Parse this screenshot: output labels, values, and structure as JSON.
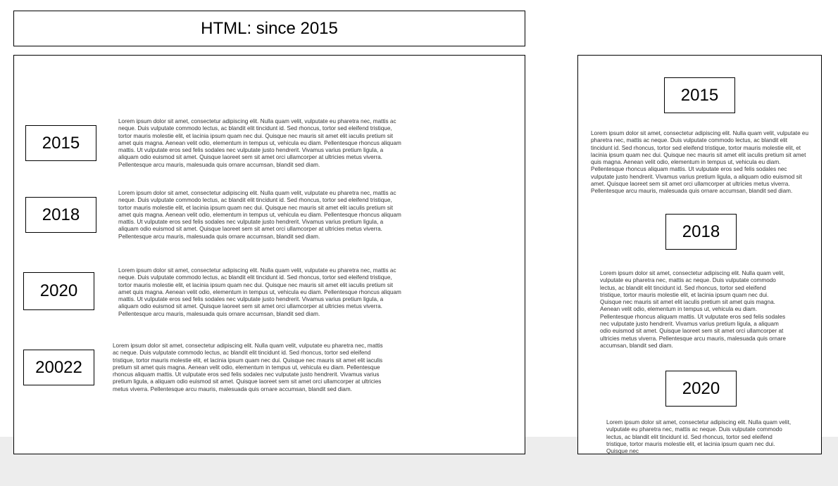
{
  "header": {
    "title": "HTML: since 2015"
  },
  "lorem": "Lorem ipsum dolor sit amet, consectetur adipiscing elit. Nulla quam velit, vulputate eu pharetra nec, mattis ac neque. Duis vulputate commodo lectus, ac blandit elit tincidunt id. Sed rhoncus, tortor sed eleifend tristique, tortor mauris molestie elit, et lacinia ipsum quam nec dui. Quisque nec mauris sit amet elit iaculis pretium sit amet quis magna. Aenean velit odio, elementum in tempus ut, vehicula eu diam. Pellentesque rhoncus aliquam mattis. Ut vulputate eros sed felis sodales nec vulputate justo hendrerit. Vivamus varius pretium ligula, a aliquam odio euismod sit amet. Quisque laoreet sem sit amet orci ullamcorper at ultricies metus viverra. Pellentesque arcu mauris, malesuada quis ornare accumsan, blandit sed diam.",
  "main": {
    "entries": [
      {
        "year": "2015",
        "text": "Lorem ipsum dolor sit amet, consectetur adipiscing elit. Nulla quam velit, vulputate eu pharetra nec, mattis ac neque. Duis vulputate commodo lectus, ac blandit elit tincidunt id. Sed rhoncus, tortor sed eleifend tristique, tortor mauris molestie elit, et lacinia ipsum quam nec dui. Quisque nec mauris sit amet elit iaculis pretium sit amet quis magna. Aenean velit odio, elementum in tempus ut, vehicula eu diam. Pellentesque rhoncus aliquam mattis. Ut vulputate eros sed felis sodales nec vulputate justo hendrerit. Vivamus varius pretium ligula, a aliquam odio euismod sit amet. Quisque laoreet sem sit amet orci ullamcorper at ultricies metus viverra. Pellentesque arcu mauris, malesuada quis ornare accumsan, blandit sed diam."
      },
      {
        "year": "2018",
        "text": "Lorem ipsum dolor sit amet, consectetur adipiscing elit. Nulla quam velit, vulputate eu pharetra nec, mattis ac neque. Duis vulputate commodo lectus, ac blandit elit tincidunt id. Sed rhoncus, tortor sed eleifend tristique, tortor mauris molestie elit, et lacinia ipsum quam nec dui. Quisque nec mauris sit amet elit iaculis pretium sit amet quis magna. Aenean velit odio, elementum in tempus ut, vehicula eu diam. Pellentesque rhoncus aliquam mattis. Ut vulputate eros sed felis sodales nec vulputate justo hendrerit. Vivamus varius pretium ligula, a aliquam odio euismod sit amet. Quisque laoreet sem sit amet orci ullamcorper at ultricies metus viverra. Pellentesque arcu mauris, malesuada quis ornare accumsan, blandit sed diam."
      },
      {
        "year": "2020",
        "text": "Lorem ipsum dolor sit amet, consectetur adipiscing elit. Nulla quam velit, vulputate eu pharetra nec, mattis ac neque. Duis vulputate commodo lectus, ac blandit elit tincidunt id. Sed rhoncus, tortor sed eleifend tristique, tortor mauris molestie elit, et lacinia ipsum quam nec dui. Quisque nec mauris sit amet elit iaculis pretium sit amet quis magna. Aenean velit odio, elementum in tempus ut, vehicula eu diam. Pellentesque rhoncus aliquam mattis. Ut vulputate eros sed felis sodales nec vulputate justo hendrerit. Vivamus varius pretium ligula, a aliquam odio euismod sit amet. Quisque laoreet sem sit amet orci ullamcorper at ultricies metus viverra. Pellentesque arcu mauris, malesuada quis ornare accumsan, blandit sed diam."
      },
      {
        "year": "20022",
        "text": "Lorem ipsum dolor sit amet, consectetur adipiscing elit. Nulla quam velit, vulputate eu pharetra nec, mattis ac neque. Duis vulputate commodo lectus, ac blandit elit tincidunt id. Sed rhoncus, tortor sed eleifend tristique, tortor mauris molestie elit, et lacinia ipsum quam nec dui. Quisque nec mauris sit amet elit iaculis pretium sit amet quis magna. Aenean velit odio, elementum in tempus ut, vehicula eu diam. Pellentesque rhoncus aliquam mattis. Ut vulputate eros sed felis sodales nec vulputate justo hendrerit. Vivamus varius pretium ligula, a aliquam odio euismod sit amet. Quisque laoreet sem sit amet orci ullamcorper at ultricies metus viverra. Pellentesque arcu mauris, malesuada quis ornare accumsan, blandit sed diam."
      }
    ]
  },
  "side": {
    "entries": [
      {
        "year": "2015",
        "text": "Lorem ipsum dolor sit amet, consectetur adipiscing elit. Nulla quam velit, vulputate eu pharetra nec, mattis ac neque. Duis vulputate commodo lectus, ac blandit elit tincidunt id. Sed rhoncus, tortor sed eleifend tristique, tortor mauris molestie elit, et lacinia ipsum quam nec dui. Quisque nec mauris sit amet elit iaculis pretium sit amet quis magna. Aenean velit odio, elementum in tempus ut, vehicula eu diam. Pellentesque rhoncus aliquam mattis. Ut vulputate eros sed felis sodales nec vulputate justo hendrerit. Vivamus varius pretium ligula, a aliquam odio euismod sit amet. Quisque laoreet sem sit amet orci ullamcorper at ultricies metus viverra. Pellentesque arcu mauris, malesuada quis ornare accumsan, blandit sed diam."
      },
      {
        "year": "2018",
        "text": "Lorem ipsum dolor sit amet, consectetur adipiscing elit. Nulla quam velit, vulputate eu pharetra nec, mattis ac neque. Duis vulputate commodo lectus, ac blandit elit tincidunt id. Sed rhoncus, tortor sed eleifend tristique, tortor mauris molestie elit, et lacinia ipsum quam nec dui. Quisque nec mauris sit amet elit iaculis pretium sit amet quis magna. Aenean velit odio, elementum in tempus ut, vehicula eu diam. Pellentesque rhoncus aliquam mattis. Ut vulputate eros sed felis sodales nec vulputate justo hendrerit. Vivamus varius pretium ligula, a aliquam odio euismod sit amet. Quisque laoreet sem sit amet orci ullamcorper at ultricies metus viverra. Pellentesque arcu mauris, malesuada quis ornare accumsan, blandit sed diam."
      },
      {
        "year": "2020",
        "text": "Lorem ipsum dolor sit amet, consectetur adipiscing elit. Nulla quam velit, vulputate eu pharetra nec, mattis ac neque. Duis vulputate commodo lectus, ac blandit elit tincidunt id. Sed rhoncus, tortor sed eleifend tristique, tortor mauris molestie elit, et lacinia ipsum quam nec dui. Quisque nec"
      }
    ]
  }
}
